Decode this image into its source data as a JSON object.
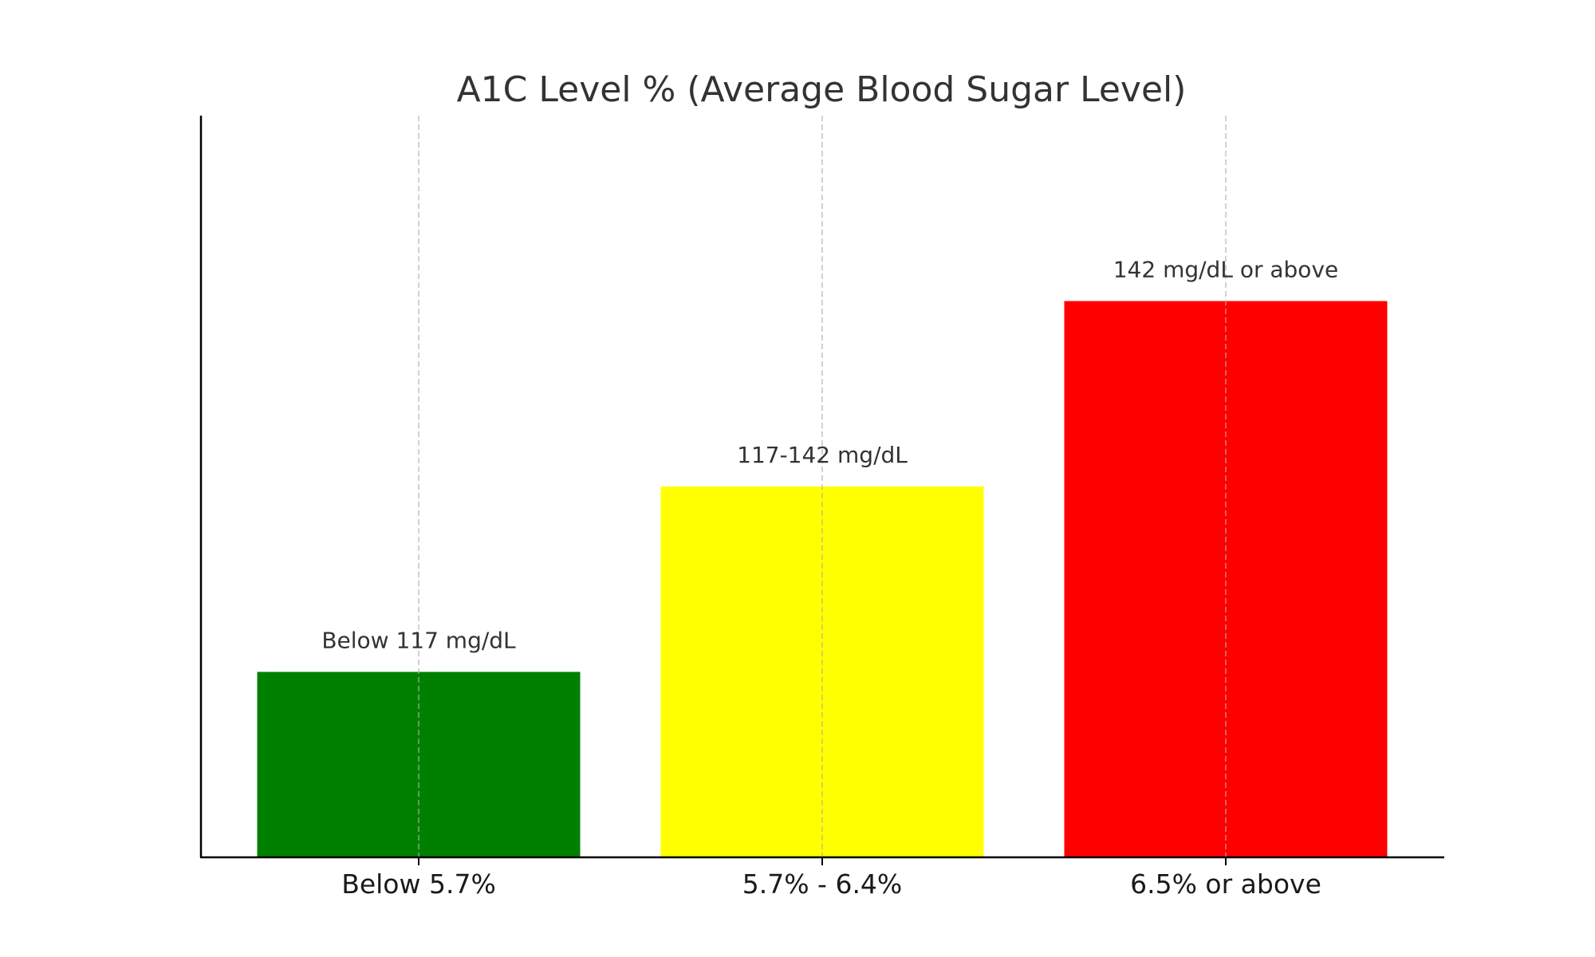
{
  "chart_data": {
    "type": "bar",
    "title": "A1C Level % (Average Blood Sugar Level)",
    "xlabel": "",
    "ylabel": "",
    "categories": [
      "Below 5.7%",
      "5.7% - 6.4%",
      "6.5% or above"
    ],
    "values": [
      1,
      2,
      3
    ],
    "ylim": [
      0,
      4
    ],
    "data_labels": [
      "Below 117 mg/dL",
      "117-142 mg/dL",
      "142 mg/dL or above"
    ],
    "colors": [
      "#008000",
      "#ffff00",
      "#ff0000"
    ],
    "grid": "x-dashed",
    "y_ticks_shown": false
  }
}
